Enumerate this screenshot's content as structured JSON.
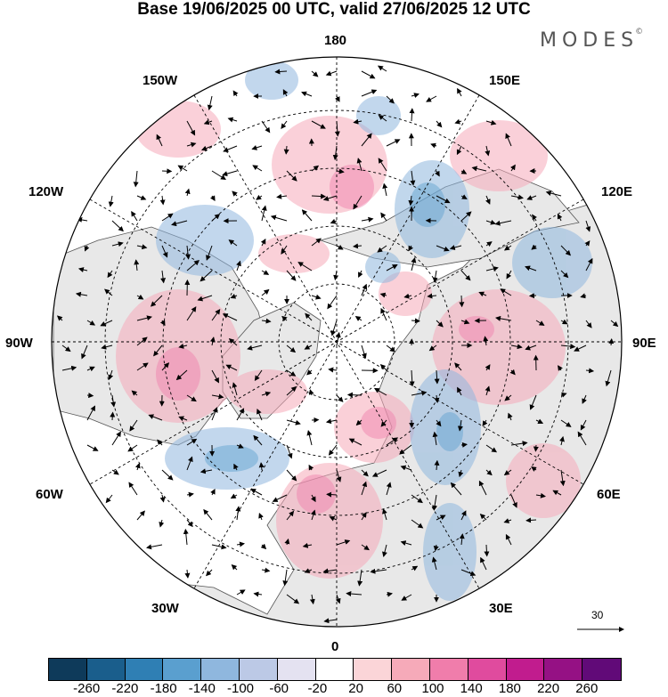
{
  "title": "Base 19/06/2025 00 UTC, valid 27/06/2025 12 UTC",
  "brand": "MODES",
  "brand_mark": "©",
  "longitude_labels": {
    "top": "180",
    "upper_left": "150W",
    "upper_right": "150E",
    "left_upper": "120W",
    "right_upper": "120E",
    "left": "90W",
    "right": "90E",
    "left_lower": "60W",
    "right_lower": "60E",
    "lower_left": "30W",
    "lower_right": "30E",
    "bottom": "0"
  },
  "vector_scale_label": "30",
  "colorbar": {
    "colors": [
      "#0e3a5a",
      "#1a5e8c",
      "#2f7fb4",
      "#5a9fcf",
      "#8fb7de",
      "#bcc9e6",
      "#e4e2f1",
      "#ffffff",
      "#fbd5d8",
      "#f6aab9",
      "#f07dab",
      "#e04b9e",
      "#c11c8e",
      "#951184",
      "#610a78"
    ],
    "ticks": [
      "-260",
      "-220",
      "-180",
      "-140",
      "-100",
      "-60",
      "-20",
      "20",
      "60",
      "100",
      "140",
      "180",
      "220",
      "260"
    ]
  }
}
